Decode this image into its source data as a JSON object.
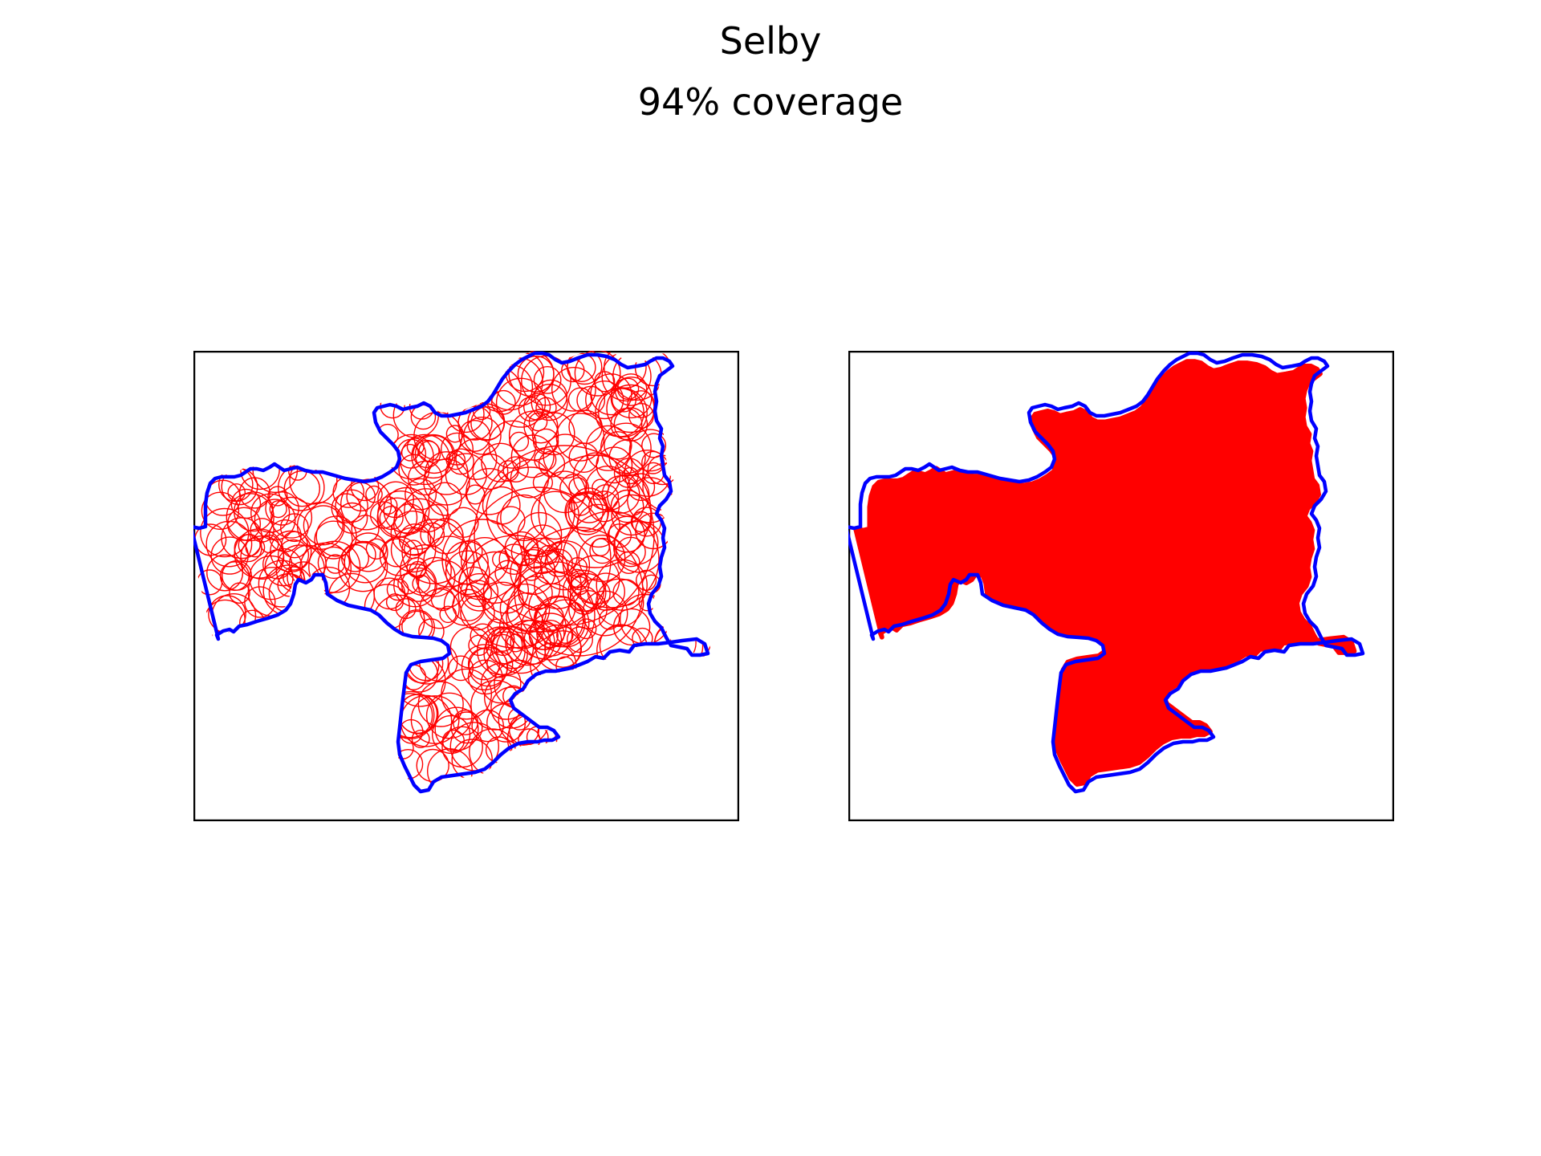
{
  "title": "Selby",
  "subtitle": "94% coverage",
  "colors": {
    "boundary": "#0000ff",
    "coverage": "#ff0000",
    "frame": "#000000",
    "background": "#ffffff"
  },
  "panels": [
    {
      "style": "circle-outlines"
    },
    {
      "style": "filled-union"
    }
  ]
}
